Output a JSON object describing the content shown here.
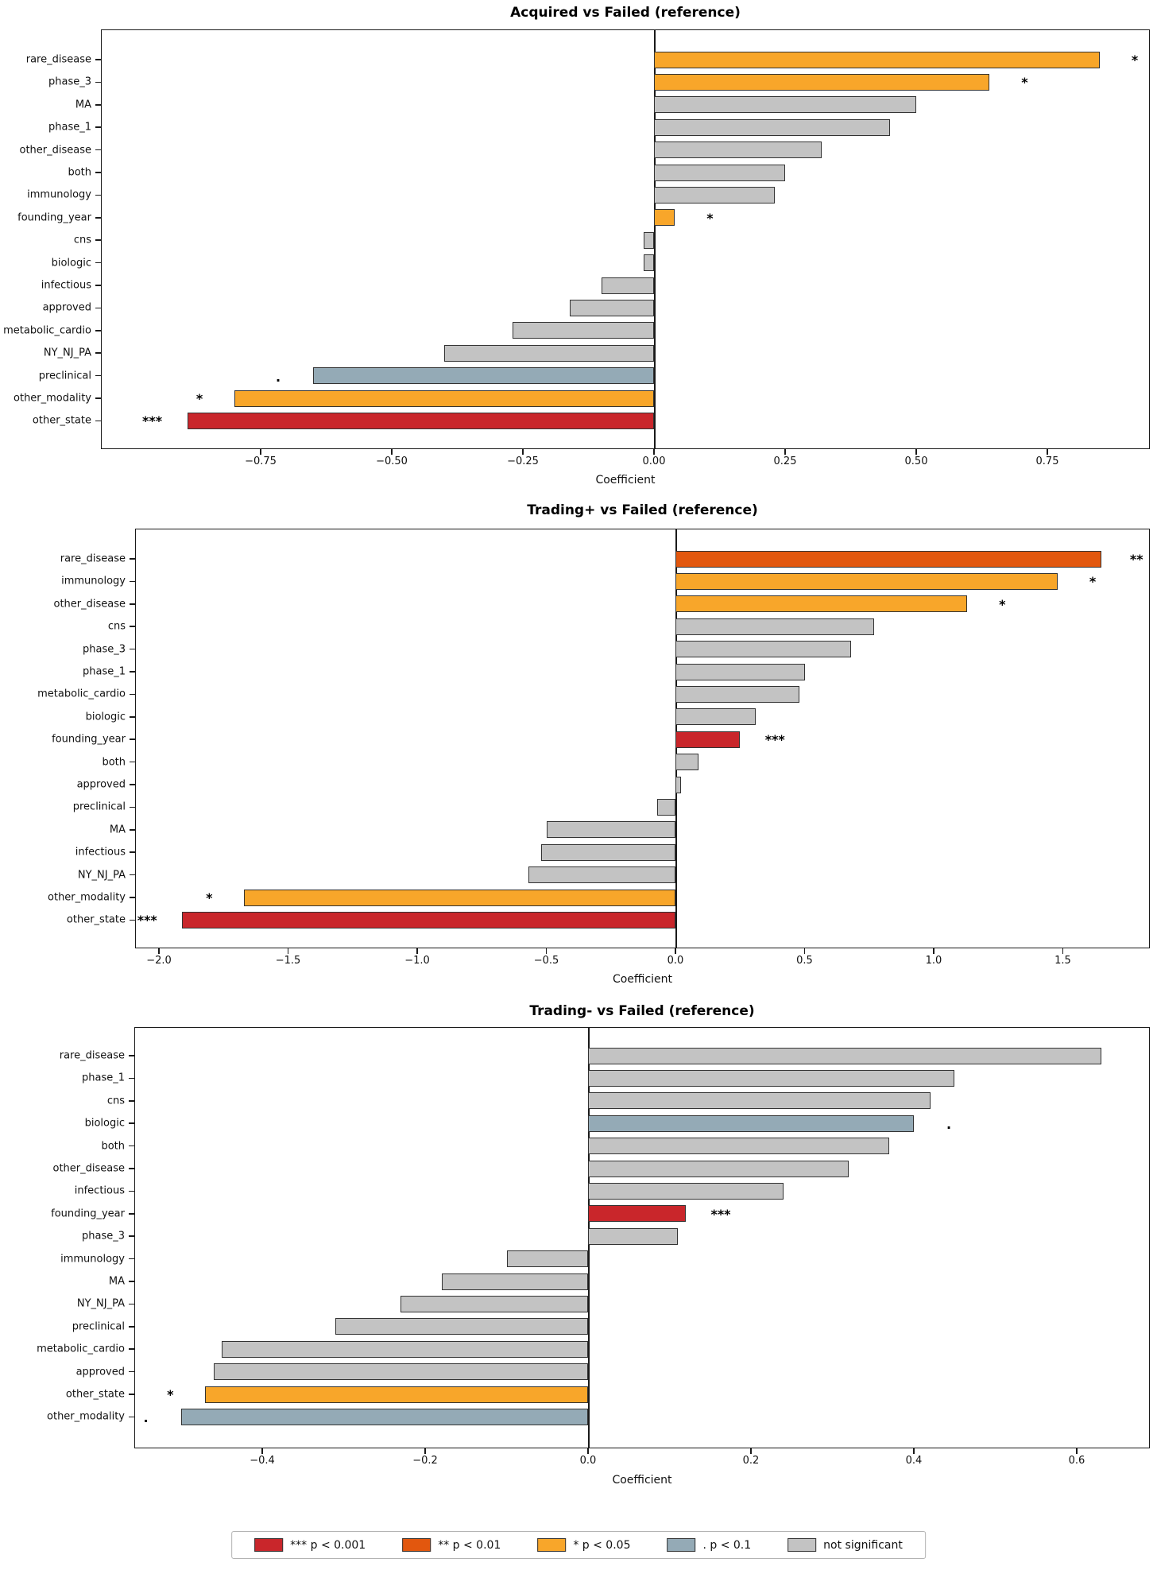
{
  "figure": {
    "background": "#ffffff"
  },
  "colors": {
    "p001": "#c9262b",
    "p01": "#e2570e",
    "p05": "#f8a62a",
    "p1": "#94aab6",
    "ns": "#c3c3c3",
    "bar_edge": "#333333",
    "axis": "#1a1a1a"
  },
  "legend": {
    "items": [
      {
        "key": "p001",
        "label": "*** p < 0.001"
      },
      {
        "key": "p01",
        "label": "** p < 0.01"
      },
      {
        "key": "p05",
        "label": "*  p < 0.05"
      },
      {
        "key": "p1",
        "label": ".  p < 0.1"
      },
      {
        "key": "ns",
        "label": "not significant"
      }
    ]
  },
  "chart_data": [
    {
      "type": "bar",
      "orientation": "horizontal",
      "title": "Acquired vs Failed (reference)",
      "xlabel": "Coefficient",
      "xlim": [
        -1.05,
        0.95
      ],
      "grid": false,
      "xticks": [
        {
          "v": -0.75,
          "t": "−0.75"
        },
        {
          "v": -0.5,
          "t": "−0.50"
        },
        {
          "v": -0.25,
          "t": "−0.25"
        },
        {
          "v": 0,
          "t": "0.00"
        },
        {
          "v": 0.25,
          "t": "0.25"
        },
        {
          "v": 0.5,
          "t": "0.50"
        },
        {
          "v": 0.75,
          "t": "0.75"
        }
      ],
      "bars": [
        {
          "label": "rare_disease",
          "value": 0.85,
          "sig": "*",
          "level": "p05"
        },
        {
          "label": "phase_3",
          "value": 0.64,
          "sig": "*",
          "level": "p05"
        },
        {
          "label": "MA",
          "value": 0.5,
          "sig": "",
          "level": "ns"
        },
        {
          "label": "phase_1",
          "value": 0.45,
          "sig": "",
          "level": "ns"
        },
        {
          "label": "other_disease",
          "value": 0.32,
          "sig": "",
          "level": "ns"
        },
        {
          "label": "both",
          "value": 0.25,
          "sig": "",
          "level": "ns"
        },
        {
          "label": "immunology",
          "value": 0.23,
          "sig": "",
          "level": "ns"
        },
        {
          "label": "founding_year",
          "value": 0.04,
          "sig": "*",
          "level": "p05"
        },
        {
          "label": "cns",
          "value": -0.02,
          "sig": "",
          "level": "ns"
        },
        {
          "label": "biologic",
          "value": -0.02,
          "sig": "",
          "level": "ns"
        },
        {
          "label": "infectious",
          "value": -0.1,
          "sig": "",
          "level": "ns"
        },
        {
          "label": "approved",
          "value": -0.16,
          "sig": "",
          "level": "ns"
        },
        {
          "label": "metabolic_cardio",
          "value": -0.27,
          "sig": "",
          "level": "ns"
        },
        {
          "label": "NY_NJ_PA",
          "value": -0.4,
          "sig": "",
          "level": "ns"
        },
        {
          "label": "preclinical",
          "value": -0.65,
          "sig": ".",
          "level": "p1"
        },
        {
          "label": "other_modality",
          "value": -0.8,
          "sig": "*",
          "level": "p05"
        },
        {
          "label": "other_state",
          "value": -0.89,
          "sig": "***",
          "level": "p001"
        }
      ]
    },
    {
      "type": "bar",
      "orientation": "horizontal",
      "title": "Trading+ vs Failed (reference)",
      "xlabel": "Coefficient",
      "xlim": [
        -2.09,
        1.84
      ],
      "grid": false,
      "xticks": [
        {
          "v": -2,
          "t": "−2.0"
        },
        {
          "v": -1.5,
          "t": "−1.5"
        },
        {
          "v": -1,
          "t": "−1.0"
        },
        {
          "v": -0.5,
          "t": "−0.5"
        },
        {
          "v": 0,
          "t": "0.0"
        },
        {
          "v": 0.5,
          "t": "0.5"
        },
        {
          "v": 1,
          "t": "1.0"
        },
        {
          "v": 1.5,
          "t": "1.5"
        }
      ],
      "bars": [
        {
          "label": "rare_disease",
          "value": 1.65,
          "sig": "**",
          "level": "p01"
        },
        {
          "label": "immunology",
          "value": 1.48,
          "sig": "*",
          "level": "p05"
        },
        {
          "label": "other_disease",
          "value": 1.13,
          "sig": "*",
          "level": "p05"
        },
        {
          "label": "cns",
          "value": 0.77,
          "sig": "",
          "level": "ns"
        },
        {
          "label": "phase_3",
          "value": 0.68,
          "sig": "",
          "level": "ns"
        },
        {
          "label": "phase_1",
          "value": 0.5,
          "sig": "",
          "level": "ns"
        },
        {
          "label": "metabolic_cardio",
          "value": 0.48,
          "sig": "",
          "level": "ns"
        },
        {
          "label": "biologic",
          "value": 0.31,
          "sig": "",
          "level": "ns"
        },
        {
          "label": "founding_year",
          "value": 0.25,
          "sig": "***",
          "level": "p001"
        },
        {
          "label": "both",
          "value": 0.09,
          "sig": "",
          "level": "ns"
        },
        {
          "label": "approved",
          "value": 0.02,
          "sig": "",
          "level": "ns"
        },
        {
          "label": "preclinical",
          "value": -0.07,
          "sig": "",
          "level": "ns"
        },
        {
          "label": "MA",
          "value": -0.5,
          "sig": "",
          "level": "ns"
        },
        {
          "label": "infectious",
          "value": -0.52,
          "sig": "",
          "level": "ns"
        },
        {
          "label": "NY_NJ_PA",
          "value": -0.57,
          "sig": "",
          "level": "ns"
        },
        {
          "label": "other_modality",
          "value": -1.67,
          "sig": "*",
          "level": "p05"
        },
        {
          "label": "other_state",
          "value": -1.91,
          "sig": "***",
          "level": "p001"
        }
      ]
    },
    {
      "type": "bar",
      "orientation": "horizontal",
      "title": "Trading- vs Failed (reference)",
      "xlabel": "Coefficient",
      "xlim": [
        -0.56,
        0.69
      ],
      "grid": false,
      "xticks": [
        {
          "v": -0.4,
          "t": "−0.4"
        },
        {
          "v": -0.2,
          "t": "−0.2"
        },
        {
          "v": 0,
          "t": "0.0"
        },
        {
          "v": 0.2,
          "t": "0.2"
        },
        {
          "v": 0.4,
          "t": "0.4"
        },
        {
          "v": 0.6,
          "t": "0.6"
        }
      ],
      "bars": [
        {
          "label": "rare_disease",
          "value": 0.63,
          "sig": "",
          "level": "ns"
        },
        {
          "label": "phase_1",
          "value": 0.45,
          "sig": "",
          "level": "ns"
        },
        {
          "label": "cns",
          "value": 0.42,
          "sig": "",
          "level": "ns"
        },
        {
          "label": "biologic",
          "value": 0.4,
          "sig": ".",
          "level": "p1"
        },
        {
          "label": "both",
          "value": 0.37,
          "sig": "",
          "level": "ns"
        },
        {
          "label": "other_disease",
          "value": 0.32,
          "sig": "",
          "level": "ns"
        },
        {
          "label": "infectious",
          "value": 0.24,
          "sig": "",
          "level": "ns"
        },
        {
          "label": "founding_year",
          "value": 0.12,
          "sig": "***",
          "level": "p001"
        },
        {
          "label": "phase_3",
          "value": 0.11,
          "sig": "",
          "level": "ns"
        },
        {
          "label": "immunology",
          "value": -0.1,
          "sig": "",
          "level": "ns"
        },
        {
          "label": "MA",
          "value": -0.18,
          "sig": "",
          "level": "ns"
        },
        {
          "label": "NY_NJ_PA",
          "value": -0.23,
          "sig": "",
          "level": "ns"
        },
        {
          "label": "preclinical",
          "value": -0.31,
          "sig": "",
          "level": "ns"
        },
        {
          "label": "metabolic_cardio",
          "value": -0.45,
          "sig": "",
          "level": "ns"
        },
        {
          "label": "approved",
          "value": -0.46,
          "sig": "",
          "level": "ns"
        },
        {
          "label": "other_state",
          "value": -0.47,
          "sig": "*",
          "level": "p05"
        },
        {
          "label": "other_modality",
          "value": -0.5,
          "sig": ".",
          "level": "p1"
        }
      ]
    }
  ]
}
